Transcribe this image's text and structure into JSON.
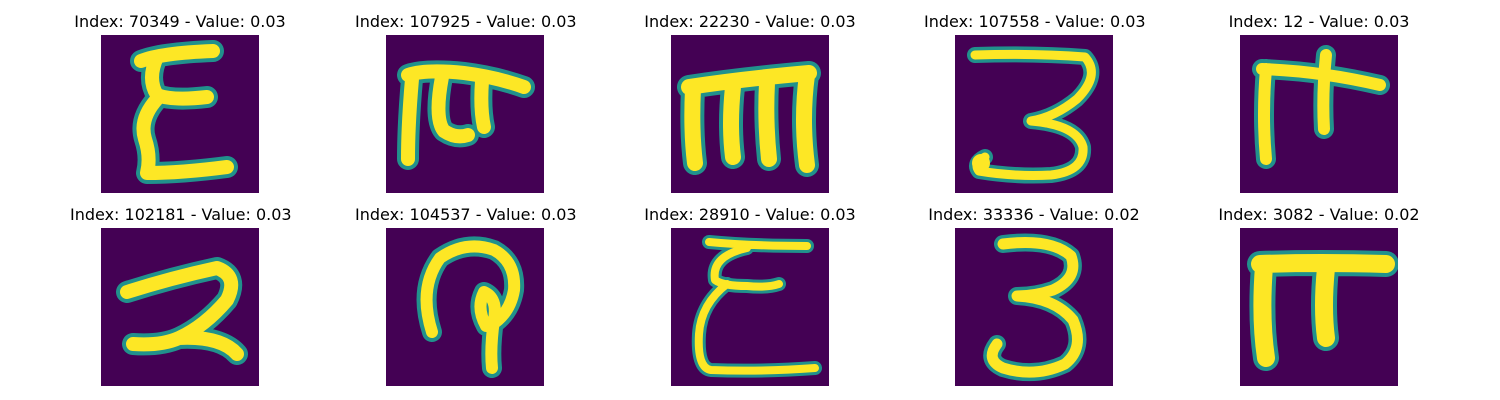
{
  "colormap": {
    "background": "#440154",
    "edge": "#21918c",
    "mid": "#35b779",
    "foreground": "#fde725"
  },
  "panels": [
    {
      "title": "Index: 70349 - Value: 0.03",
      "glyph": "tall-e-like handwritten character"
    },
    {
      "title": "Index: 107925 - Value: 0.03",
      "glyph": "pi-like character with curled stroke"
    },
    {
      "title": "Index: 22230 - Value: 0.03",
      "glyph": "m-like character"
    },
    {
      "title": "Index: 107558 - Value: 0.03",
      "glyph": "3-like character with tail"
    },
    {
      "title": "Index: 12 - Value: 0.03",
      "glyph": "pi-like character"
    },
    {
      "title": "Index: 102181 - Value: 0.03",
      "glyph": "2-like character"
    },
    {
      "title": "Index: 104537 - Value: 0.03",
      "glyph": "arch with inner loop character"
    },
    {
      "title": "Index: 28910 - Value: 0.03",
      "glyph": "epsilon-like character"
    },
    {
      "title": "Index: 33336 - Value: 0.02",
      "glyph": "3-like character"
    },
    {
      "title": "Index: 3082 - Value: 0.02",
      "glyph": "pi-like wide character"
    }
  ]
}
